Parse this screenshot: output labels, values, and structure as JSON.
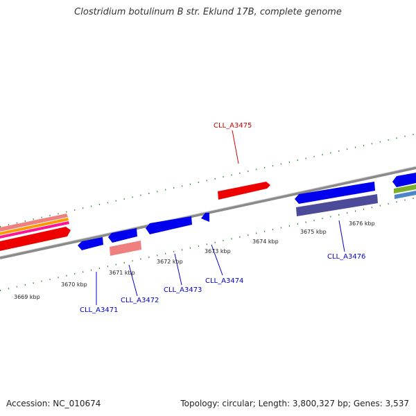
{
  "title": "Clostridium botulinum B str. Eklund 17B, complete genome",
  "footer": {
    "accession": "Accession: NC_010674",
    "summary": "Topology: circular; Length: 3,800,327 bp; Genes: 3,537"
  },
  "colors": {
    "backbone": "#8a8a8a",
    "tick": "#2a8a2a",
    "forward_gene": "#ff0000",
    "reverse_gene": "#0000ff",
    "label_forward": "#cc0000",
    "label_reverse": "#0000cc"
  },
  "scale_labels": [
    "3669 kbp",
    "3670 kbp",
    "3671 kbp",
    "3672 kbp",
    "3673 kbp",
    "3674 kbp",
    "3675 kbp",
    "3676 kbp"
  ],
  "gene_labels": [
    {
      "name": "CLL_A3475",
      "strand": "forward"
    },
    {
      "name": "CLL_A3471",
      "strand": "reverse"
    },
    {
      "name": "CLL_A3472",
      "strand": "reverse"
    },
    {
      "name": "CLL_A3473",
      "strand": "reverse"
    },
    {
      "name": "CLL_A3474",
      "strand": "reverse"
    },
    {
      "name": "CLL_A3476",
      "strand": "reverse"
    }
  ]
}
